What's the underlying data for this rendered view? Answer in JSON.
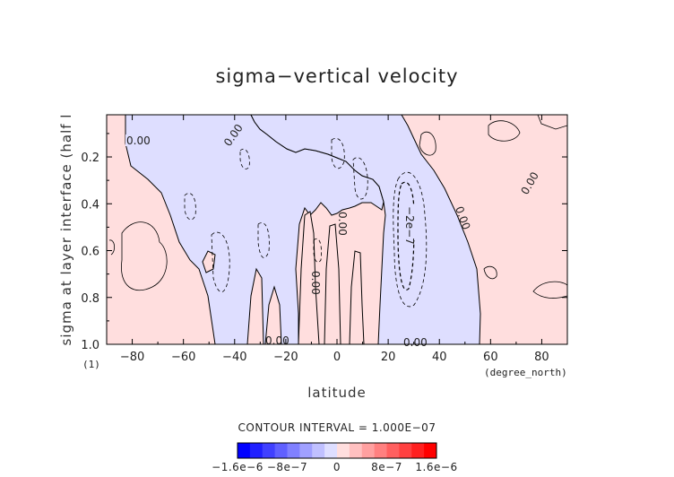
{
  "chart_data": {
    "type": "contour",
    "title": "sigma−vertical velocity",
    "xlabel": "latitude",
    "ylabel": "sigma at layer interface (half l",
    "x_unit": "(degree_north)",
    "y_unit": "(1)",
    "xlim": [
      -90,
      90
    ],
    "ylim": [
      1.0,
      0.02
    ],
    "x_ticks": [
      -80,
      -60,
      -40,
      -20,
      0,
      20,
      40,
      60,
      80
    ],
    "x_tick_labels": [
      "−80",
      "−60",
      "−40",
      "−20",
      "0",
      "20",
      "40",
      "60",
      "80"
    ],
    "y_ticks": [
      0.2,
      0.4,
      0.6,
      0.8,
      1.0
    ],
    "y_tick_labels": [
      "0.2",
      "0.4",
      "0.6",
      "0.8",
      "1.0"
    ],
    "contour_interval_text": "CONTOUR INTERVAL = 1.000E−07",
    "contour_labels": [
      "0.00",
      "0.00",
      "0.00",
      "0.00",
      "0.00",
      "0.00",
      "0.00",
      "−2e−7",
      "0.00"
    ],
    "colorbar": {
      "tick_labels": [
        "−1.6e−6",
        "−8e−7",
        "0",
        "8e−7",
        "1.6e−6"
      ],
      "tick_values": [
        -1.6e-06,
        -8e-07,
        0,
        8e-07,
        1.6e-06
      ],
      "colors": [
        "#0000ff",
        "#2020ff",
        "#4040ff",
        "#6060ff",
        "#8080ff",
        "#a0a0ff",
        "#c0c0ff",
        "#dedeff",
        "#ffdede",
        "#ffc0c0",
        "#ffa0a0",
        "#ff8080",
        "#ff6060",
        "#ff4040",
        "#ff2020",
        "#ff0000"
      ]
    },
    "negative_fill": "#dedeff",
    "positive_fill": "#ffdede",
    "regions": [
      {
        "sign": "positive",
        "lat_range": [
          -90,
          -45
        ],
        "sigma_range": [
          0.02,
          1.0
        ]
      },
      {
        "sign": "negative",
        "lat_range": [
          -45,
          -5
        ],
        "sigma_range": [
          0.02,
          1.0
        ]
      },
      {
        "sign": "positive",
        "lat_range": [
          -5,
          8
        ],
        "sigma_range": [
          0.4,
          1.0
        ]
      },
      {
        "sign": "negative",
        "lat_range": [
          8,
          55
        ],
        "sigma_range": [
          0.02,
          1.0
        ]
      },
      {
        "sign": "positive",
        "lat_range": [
          55,
          90
        ],
        "sigma_range": [
          0.02,
          1.0
        ]
      }
    ],
    "extremum": {
      "label": "−2e−7",
      "lat": 27,
      "sigma": 0.55
    }
  }
}
